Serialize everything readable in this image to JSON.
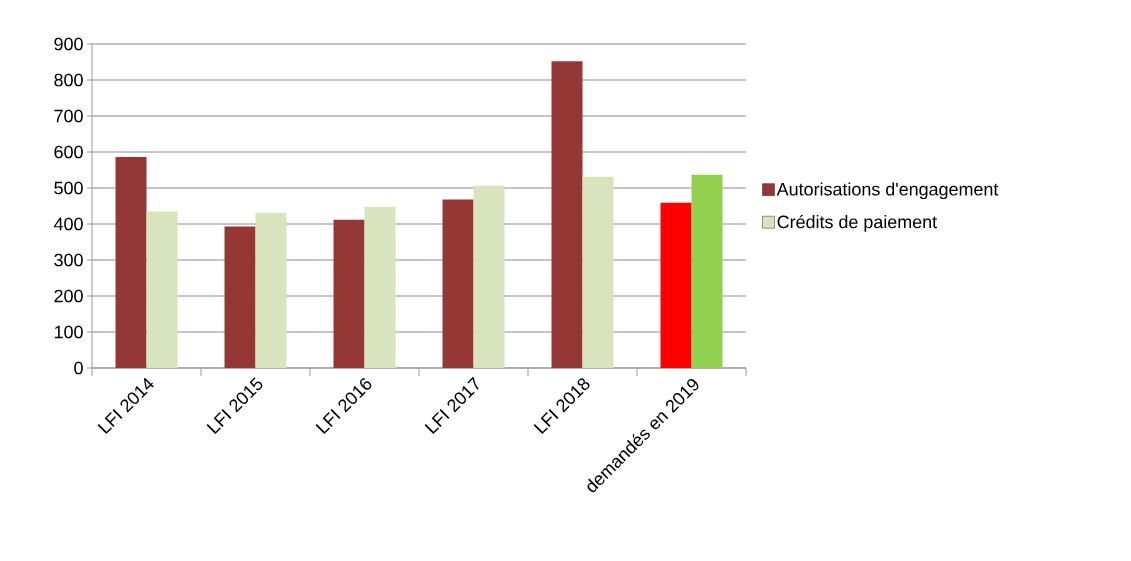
{
  "chart_data": {
    "type": "bar",
    "categories": [
      "LFI 2014",
      "LFI 2015",
      "LFI 2016",
      "LFI 2017",
      "LFI 2018",
      "demandés en 2019"
    ],
    "series": [
      {
        "name": "Autorisations d'engagement",
        "colors": [
          "#953735",
          "#953735",
          "#953735",
          "#953735",
          "#953735",
          "#ff0000"
        ],
        "values": [
          586,
          393,
          412,
          468,
          852,
          459
        ]
      },
      {
        "name": "Crédits de paiement",
        "colors": [
          "#d7e4bd",
          "#d7e4bd",
          "#d7e4bd",
          "#d7e4bd",
          "#d7e4bd",
          "#92d050"
        ],
        "values": [
          435,
          431,
          447,
          506,
          531,
          537
        ]
      }
    ],
    "ylim": [
      0,
      900
    ],
    "yticks": [
      0,
      100,
      200,
      300,
      400,
      500,
      600,
      700,
      800,
      900
    ],
    "grid": "y",
    "legend": "right"
  }
}
